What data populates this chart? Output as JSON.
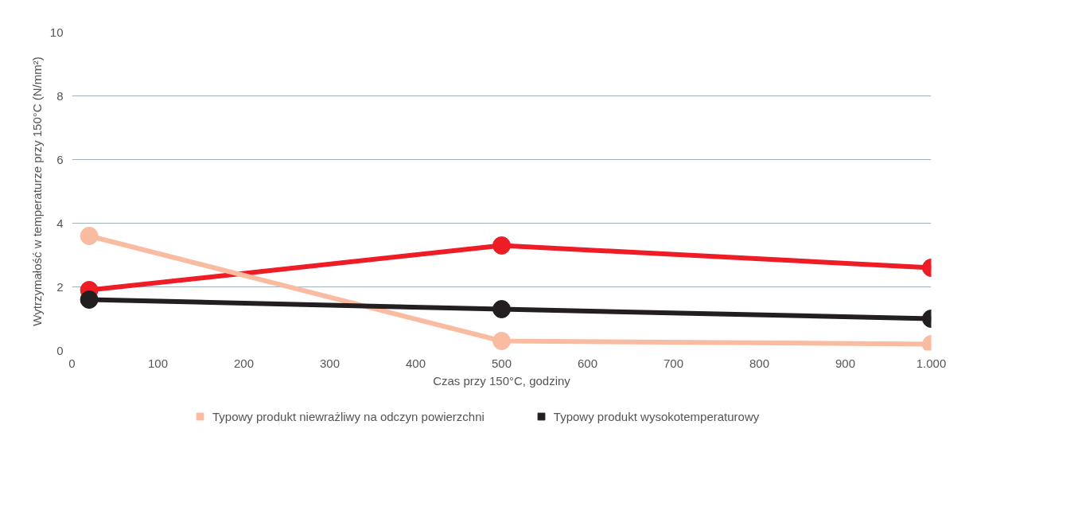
{
  "chart_data": {
    "type": "line",
    "xlabel": "Czas przy 150°C, godziny",
    "ylabel": "Wytrzymałość w temperaturze przy 150°C (N/mm²)",
    "x": [
      20,
      500,
      1000
    ],
    "series": [
      {
        "color": "#ee1c25",
        "values": [
          1.9,
          3.3,
          2.6
        ]
      },
      {
        "name": "Typowy produkt niewrażliwy na odczyn powierzchni",
        "color": "#f9bca0",
        "values": [
          3.6,
          0.3,
          0.2
        ]
      },
      {
        "name": "Typowy produkt wysokotemperaturowy",
        "color": "#231f20",
        "values": [
          1.6,
          1.3,
          1.0
        ]
      }
    ],
    "xlim": [
      0,
      1000
    ],
    "ylim": [
      0,
      10
    ],
    "xticks": [
      0,
      100,
      200,
      300,
      400,
      500,
      600,
      700,
      800,
      900,
      {
        "value": 1000,
        "label": "1.000"
      }
    ],
    "yticks": [
      0,
      2,
      4,
      6,
      8,
      10
    ],
    "grid": "y",
    "legend": "bottom",
    "marker": "circle",
    "line_style": "solid"
  }
}
